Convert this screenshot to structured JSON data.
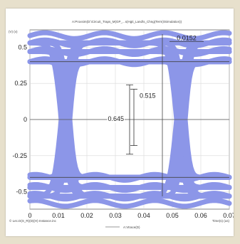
{
  "chart_data": {
    "type": "line",
    "title": "A:Proxsim(D:\\Circuit_Traps_M(GP_...s(Hgti_Land\\s_Chng(Term)\\Simulation))",
    "ylabel": "(V) (v)",
    "xlabel": "Time(s) (us)",
    "legend": "A:Vtrace(D)",
    "bottom_left_note": "© Lec.D(S_R)(D)(H) Instance.inc",
    "x_ticks": [
      "0",
      "0.01",
      "0.02",
      "0.03",
      "0.04",
      "0.05",
      "0.06",
      "0.07"
    ],
    "y_ticks": [
      "0.5",
      "0.25",
      "0",
      "-0.25",
      "-0.5"
    ],
    "xlim": [
      0,
      0.07
    ],
    "ylim": [
      -0.62,
      0.62
    ],
    "grid": true,
    "series": [
      {
        "name": "A:Vtrace(D)",
        "color": "#8c96e8",
        "description": "eye diagram band"
      }
    ],
    "annotations": [
      {
        "label": "0.645",
        "kind": "vertical-measure",
        "x": 0.035,
        "y_from": -0.24,
        "y_to": 0.24
      },
      {
        "label": "0.515",
        "kind": "vertical-measure",
        "x": 0.0365,
        "y_from": -0.18,
        "y_to": 0.21
      },
      {
        "label": "0.0152",
        "kind": "horizontal-measure",
        "y": 0.54,
        "x_from": 0.049,
        "x_to": 0.061
      }
    ]
  }
}
